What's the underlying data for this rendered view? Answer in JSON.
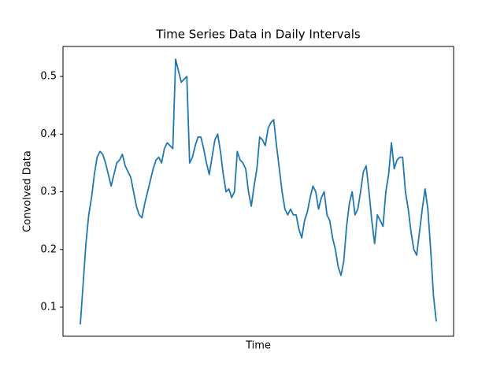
{
  "chart_data": {
    "type": "line",
    "title": "Time Series Data in Daily Intervals",
    "x_label": "Time",
    "y_label": "Convolved Data",
    "series": [
      {
        "name": "Convolved Data",
        "color": "#1f77b4",
        "values": [
          0.07,
          0.14,
          0.21,
          0.26,
          0.29,
          0.33,
          0.36,
          0.37,
          0.365,
          0.35,
          0.33,
          0.31,
          0.33,
          0.35,
          0.355,
          0.365,
          0.345,
          0.335,
          0.325,
          0.3,
          0.275,
          0.26,
          0.255,
          0.28,
          0.3,
          0.32,
          0.34,
          0.355,
          0.36,
          0.35,
          0.375,
          0.385,
          0.38,
          0.375,
          0.53,
          0.51,
          0.49,
          0.495,
          0.5,
          0.35,
          0.36,
          0.38,
          0.395,
          0.395,
          0.375,
          0.35,
          0.33,
          0.36,
          0.39,
          0.4,
          0.37,
          0.33,
          0.3,
          0.305,
          0.29,
          0.3,
          0.37,
          0.355,
          0.35,
          0.34,
          0.3,
          0.275,
          0.31,
          0.34,
          0.395,
          0.39,
          0.38,
          0.41,
          0.42,
          0.425,
          0.38,
          0.34,
          0.3,
          0.27,
          0.26,
          0.27,
          0.26,
          0.26,
          0.235,
          0.22,
          0.25,
          0.265,
          0.29,
          0.31,
          0.3,
          0.27,
          0.29,
          0.3,
          0.26,
          0.25,
          0.22,
          0.2,
          0.17,
          0.155,
          0.18,
          0.24,
          0.28,
          0.3,
          0.26,
          0.27,
          0.3,
          0.335,
          0.345,
          0.3,
          0.25,
          0.21,
          0.26,
          0.25,
          0.24,
          0.3,
          0.33,
          0.385,
          0.34,
          0.355,
          0.36,
          0.36,
          0.3,
          0.27,
          0.23,
          0.2,
          0.19,
          0.23,
          0.27,
          0.305,
          0.27,
          0.2,
          0.12,
          0.075
        ]
      }
    ],
    "ylim": [
      0.0495,
      0.552
    ],
    "yticks": [
      0.1,
      0.2,
      0.3,
      0.4,
      0.5
    ],
    "grid": false
  }
}
